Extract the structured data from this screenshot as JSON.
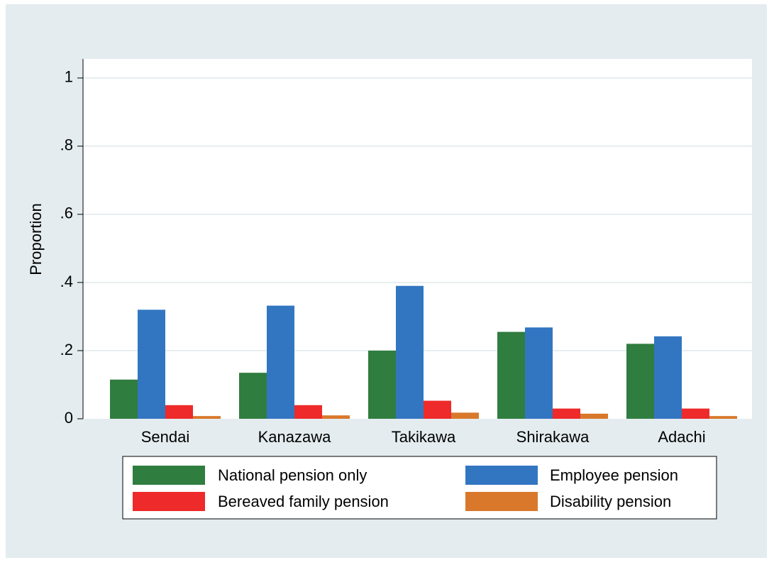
{
  "chart_data": {
    "type": "bar",
    "y_label": "Proportion",
    "categories": [
      "Sendai",
      "Kanazawa",
      "Takikawa",
      "Shirakawa",
      "Adachi"
    ],
    "series": [
      {
        "name": "National pension only",
        "color": "#2f7d3f",
        "values": [
          0.115,
          0.135,
          0.2,
          0.255,
          0.22
        ]
      },
      {
        "name": "Employee pension",
        "color": "#3276c2",
        "values": [
          0.32,
          0.332,
          0.39,
          0.268,
          0.242
        ]
      },
      {
        "name": "Bereaved family pension",
        "color": "#ee2a2a",
        "values": [
          0.04,
          0.04,
          0.053,
          0.03,
          0.03
        ]
      },
      {
        "name": "Disability pension",
        "color": "#d9782b",
        "values": [
          0.008,
          0.01,
          0.018,
          0.015,
          0.008
        ]
      }
    ],
    "ylim": [
      0,
      1.056
    ],
    "yticks": [
      0,
      {
        "value": 0.2,
        "label": ".2"
      },
      {
        "value": 0.4,
        "label": ".4"
      },
      {
        "value": 0.6,
        "label": ".6"
      },
      {
        "value": 0.8,
        "label": ".8"
      },
      1
    ],
    "grid": true
  }
}
